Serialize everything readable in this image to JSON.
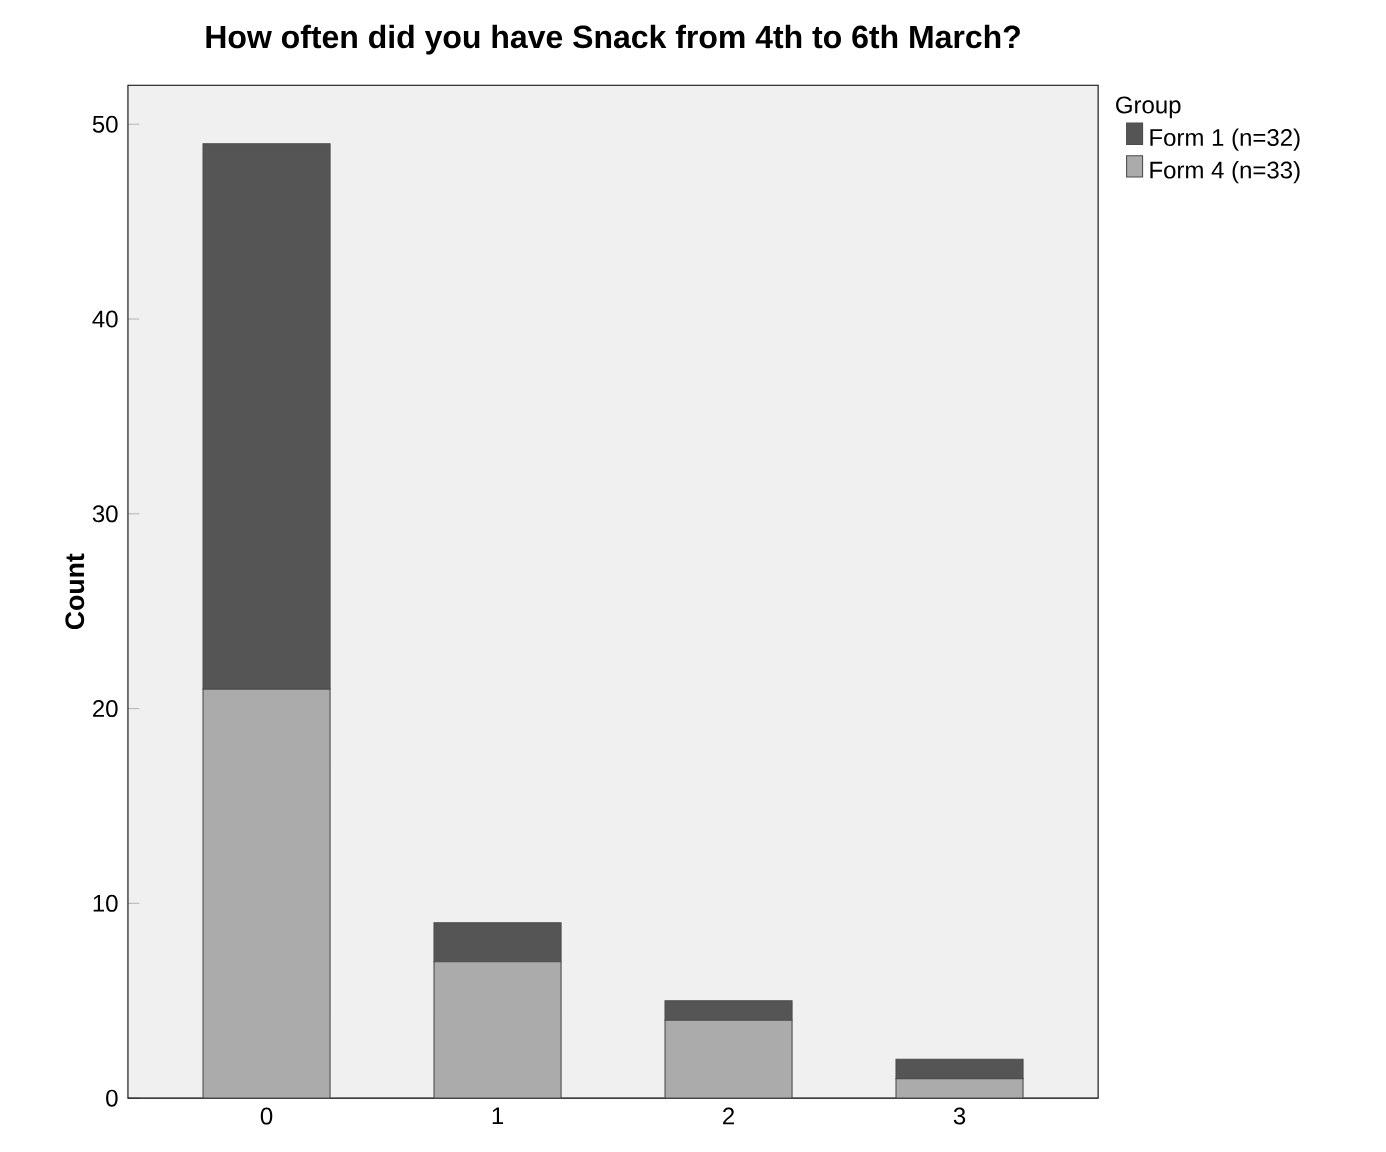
{
  "chart_data": {
    "type": "bar",
    "title": "How often did you have Snack from 4th to 6th March?",
    "ylabel": "Count",
    "legend_title": "Group",
    "categories": [
      "0",
      "1",
      "2",
      "3"
    ],
    "stacked": true,
    "ylim": [
      0,
      52
    ],
    "yticks": [
      0,
      10,
      20,
      30,
      40,
      50
    ],
    "legend": "top right",
    "grid": false,
    "series": [
      {
        "name": "Form 4 (n=33)",
        "color": "#ababab",
        "values": [
          21,
          7,
          4,
          1
        ]
      },
      {
        "name": "Form 1 (n=32)",
        "color": "#555555",
        "values": [
          28,
          2,
          1,
          1
        ]
      }
    ]
  }
}
